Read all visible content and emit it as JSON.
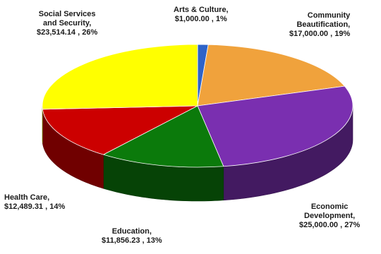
{
  "chart_data": {
    "type": "pie",
    "style": "3d",
    "title": "",
    "currency": "$",
    "slices": [
      {
        "name": "Arts & Culture",
        "value": 1000.0,
        "percent": 1,
        "color": "#2e63c8",
        "label_lines": [
          "Arts & Culture,",
          "$1,000.00 , 1%"
        ]
      },
      {
        "name": "Community Beautification",
        "value": 17000.0,
        "percent": 19,
        "color": "#f0a23c",
        "label_lines": [
          "Community",
          "Beautification,",
          "$17,000.00 , 19%"
        ]
      },
      {
        "name": "Economic Development",
        "value": 25000.0,
        "percent": 27,
        "color": "#7a2fb0",
        "label_lines": [
          "Economic",
          "Development,",
          "$25,000.00 , 27%"
        ]
      },
      {
        "name": "Education",
        "value": 11856.23,
        "percent": 13,
        "color": "#0b7a0b",
        "label_lines": [
          "Education,",
          "$11,856.23 , 13%"
        ]
      },
      {
        "name": "Health Care",
        "value": 12489.31,
        "percent": 14,
        "color": "#cc0000",
        "label_lines": [
          "Health Care,",
          "$12,489.31 , 14%"
        ]
      },
      {
        "name": "Social Services and Security",
        "value": 23514.14,
        "percent": 26,
        "color": "#ffff00",
        "label_lines": [
          "Social Services",
          "and Security,",
          "$23,514.14 , 26%"
        ]
      }
    ]
  }
}
